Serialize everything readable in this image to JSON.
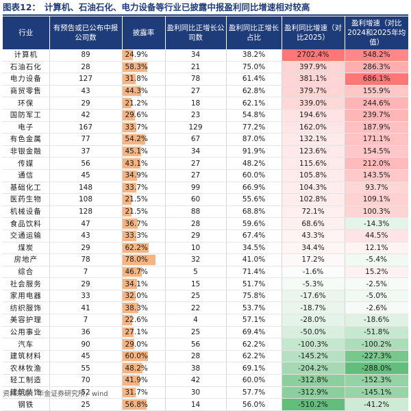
{
  "title": {
    "label": "图表12：",
    "text": "计算机、石油石化、电力设备等行业已披露中报盈利同比增速相对较高"
  },
  "table": {
    "headers": [
      "行业",
      "有预告或已公布中报公司数",
      "披露率",
      "盈利同比正增长公司数",
      "盈利同比正增长占比",
      "盈利同比增速（对比2025）",
      "盈利增速（对比2024和2025年均值）"
    ],
    "rows": [
      {
        "industry": "计算机",
        "count": "89",
        "disclosure": "24.9%",
        "disclosure_value": 24.9,
        "positive": "34",
        "positive_ratio": "38.2%",
        "growth": "2702.4%",
        "growth_value": 2702.4,
        "growth_avg": "548.2%",
        "growth_avg_value": 548.2
      },
      {
        "industry": "石油石化",
        "count": "28",
        "disclosure": "58.3%",
        "disclosure_value": 58.3,
        "positive": "21",
        "positive_ratio": "75.0%",
        "growth": "397.9%",
        "growth_value": 397.9,
        "growth_avg": "286.3%",
        "growth_avg_value": 286.3
      },
      {
        "industry": "电力设备",
        "count": "127",
        "disclosure": "31.8%",
        "disclosure_value": 31.8,
        "positive": "78",
        "positive_ratio": "61.4%",
        "growth": "381.1%",
        "growth_value": 381.1,
        "growth_avg": "686.1%",
        "growth_avg_value": 686.1
      },
      {
        "industry": "商贸零售",
        "count": "43",
        "disclosure": "44.3%",
        "disclosure_value": 44.3,
        "positive": "27",
        "positive_ratio": "62.8%",
        "growth": "379.7%",
        "growth_value": 379.7,
        "growth_avg": "155.9%",
        "growth_avg_value": 155.9
      },
      {
        "industry": "环保",
        "count": "29",
        "disclosure": "21.2%",
        "disclosure_value": 21.2,
        "positive": "18",
        "positive_ratio": "62.1%",
        "growth": "339.0%",
        "growth_value": 339.0,
        "growth_avg": "244.6%",
        "growth_avg_value": 244.6
      },
      {
        "industry": "国防军工",
        "count": "42",
        "disclosure": "29.6%",
        "disclosure_value": 29.6,
        "positive": "23",
        "positive_ratio": "54.8%",
        "growth": "194.6%",
        "growth_value": 194.6,
        "growth_avg": "239.7%",
        "growth_avg_value": 239.7
      },
      {
        "industry": "电子",
        "count": "167",
        "disclosure": "33.7%",
        "disclosure_value": 33.7,
        "positive": "129",
        "positive_ratio": "77.2%",
        "growth": "162.0%",
        "growth_value": 162.0,
        "growth_avg": "187.9%",
        "growth_avg_value": 187.9
      },
      {
        "industry": "有色金属",
        "count": "77",
        "disclosure": "54.2%",
        "disclosure_value": 54.2,
        "positive": "67",
        "positive_ratio": "87.0%",
        "growth": "132.1%",
        "growth_value": 132.1,
        "growth_avg": "171.1%",
        "growth_avg_value": 171.1
      },
      {
        "industry": "非银金融",
        "count": "37",
        "disclosure": "45.1%",
        "disclosure_value": 45.1,
        "positive": "34",
        "positive_ratio": "91.9%",
        "growth": "123.6%",
        "growth_value": 123.6,
        "growth_avg": "154.5%",
        "growth_avg_value": 154.5
      },
      {
        "industry": "传媒",
        "count": "56",
        "disclosure": "43.1%",
        "disclosure_value": 43.1,
        "positive": "27",
        "positive_ratio": "48.2%",
        "growth": "115.6%",
        "growth_value": 115.6,
        "growth_avg": "212.0%",
        "growth_avg_value": 212.0
      },
      {
        "industry": "通信",
        "count": "45",
        "disclosure": "34.9%",
        "disclosure_value": 34.9,
        "positive": "27",
        "positive_ratio": "60.0%",
        "growth": "105.8%",
        "growth_value": 105.8,
        "growth_avg": "143.5%",
        "growth_avg_value": 143.5
      },
      {
        "industry": "基础化工",
        "count": "148",
        "disclosure": "33.7%",
        "disclosure_value": 33.7,
        "positive": "99",
        "positive_ratio": "66.9%",
        "growth": "104.3%",
        "growth_value": 104.3,
        "growth_avg": "93.7%",
        "growth_avg_value": 93.7
      },
      {
        "industry": "医药生物",
        "count": "108",
        "disclosure": "21.5%",
        "disclosure_value": 21.5,
        "positive": "60",
        "positive_ratio": "55.6%",
        "growth": "102.8%",
        "growth_value": 102.8,
        "growth_avg": "109.1%",
        "growth_avg_value": 109.1
      },
      {
        "industry": "机械设备",
        "count": "128",
        "disclosure": "21.5%",
        "disclosure_value": 21.5,
        "positive": "88",
        "positive_ratio": "68.8%",
        "growth": "72.1%",
        "growth_value": 72.1,
        "growth_avg": "100.3%",
        "growth_avg_value": 100.3
      },
      {
        "industry": "食品饮料",
        "count": "47",
        "disclosure": "36.7%",
        "disclosure_value": 36.7,
        "positive": "28",
        "positive_ratio": "59.6%",
        "growth": "68.6%",
        "growth_value": 68.6,
        "growth_avg": "-14.3%",
        "growth_avg_value": -14.3
      },
      {
        "industry": "交通运输",
        "count": "43",
        "disclosure": "33.3%",
        "disclosure_value": 33.3,
        "positive": "29",
        "positive_ratio": "67.4%",
        "growth": "43.3%",
        "growth_value": 43.3,
        "growth_avg": "44.5%",
        "growth_avg_value": 44.5
      },
      {
        "industry": "煤炭",
        "count": "29",
        "disclosure": "62.2%",
        "disclosure_value": 62.2,
        "positive": "10",
        "positive_ratio": "34.5%",
        "growth": "34.4%",
        "growth_value": 34.4,
        "growth_avg": "12.1%",
        "growth_avg_value": 12.1
      },
      {
        "industry": "房地产",
        "count": "78",
        "disclosure": "78.0%",
        "disclosure_value": 78.0,
        "positive": "32",
        "positive_ratio": "41.0%",
        "growth": "17.2%",
        "growth_value": 17.2,
        "growth_avg": "-5.4%",
        "growth_avg_value": -5.4
      },
      {
        "industry": "综合",
        "count": "7",
        "disclosure": "46.7%",
        "disclosure_value": 46.7,
        "positive": "5",
        "positive_ratio": "71.4%",
        "growth": "-1.6%",
        "growth_value": -1.6,
        "growth_avg": "15.2%",
        "growth_avg_value": 15.2
      },
      {
        "industry": "社会服务",
        "count": "29",
        "disclosure": "34.1%",
        "disclosure_value": 34.1,
        "positive": "15",
        "positive_ratio": "51.7%",
        "growth": "-5.3%",
        "growth_value": -5.3,
        "growth_avg": "-2.5%",
        "growth_avg_value": -2.5
      },
      {
        "industry": "家用电器",
        "count": "33",
        "disclosure": "32.0%",
        "disclosure_value": 32.0,
        "positive": "25",
        "positive_ratio": "75.8%",
        "growth": "-17.6%",
        "growth_value": -17.6,
        "growth_avg": "-5.0%",
        "growth_avg_value": -5.0
      },
      {
        "industry": "纺织服饰",
        "count": "41",
        "disclosure": "38.3%",
        "disclosure_value": 38.3,
        "positive": "22",
        "positive_ratio": "53.7%",
        "growth": "-18.7%",
        "growth_value": -18.7,
        "growth_avg": "-2.6%",
        "growth_avg_value": -2.6
      },
      {
        "industry": "美容护理",
        "count": "7",
        "disclosure": "22.6%",
        "disclosure_value": 22.6,
        "positive": "4",
        "positive_ratio": "57.1%",
        "growth": "-28.0%",
        "growth_value": -28.0,
        "growth_avg": "-18.6%",
        "growth_avg_value": -18.6
      },
      {
        "industry": "公用事业",
        "count": "36",
        "disclosure": "27.1%",
        "disclosure_value": 27.1,
        "positive": "25",
        "positive_ratio": "69.4%",
        "growth": "-50.0%",
        "growth_value": -50.0,
        "growth_avg": "-51.8%",
        "growth_avg_value": -51.8
      },
      {
        "industry": "汽车",
        "count": "90",
        "disclosure": "29.0%",
        "disclosure_value": 29.0,
        "positive": "56",
        "positive_ratio": "62.2%",
        "growth": "-100.3%",
        "growth_value": -100.3,
        "growth_avg": "-100.2%",
        "growth_avg_value": -100.2
      },
      {
        "industry": "建筑材料",
        "count": "45",
        "disclosure": "60.0%",
        "disclosure_value": 60.0,
        "positive": "28",
        "positive_ratio": "62.2%",
        "growth": "-145.2%",
        "growth_value": -145.2,
        "growth_avg": "-227.3%",
        "growth_avg_value": -227.3
      },
      {
        "industry": "农林牧渔",
        "count": "55",
        "disclosure": "48.2%",
        "disclosure_value": 48.2,
        "positive": "38",
        "positive_ratio": "69.1%",
        "growth": "-204.2%",
        "growth_value": -204.2,
        "growth_avg": "-288.0%",
        "growth_avg_value": -288.0
      },
      {
        "industry": "轻工制造",
        "count": "70",
        "disclosure": "41.9%",
        "disclosure_value": 41.9,
        "positive": "42",
        "positive_ratio": "60.0%",
        "growth": "-312.8%",
        "growth_value": -312.8,
        "growth_avg": "-152.3%",
        "growth_avg_value": -152.3
      },
      {
        "industry": "建筑装饰",
        "count": "52",
        "disclosure": "31.7%",
        "disclosure_value": 31.7,
        "positive": "30",
        "positive_ratio": "57.7%",
        "growth": "-312.9%",
        "growth_value": -312.9,
        "growth_avg": "-145.1%",
        "growth_avg_value": -145.1
      },
      {
        "industry": "钢铁",
        "count": "25",
        "disclosure": "56.8%",
        "disclosure_value": 56.8,
        "positive": "14",
        "positive_ratio": "56.0%",
        "growth": "-510.2%",
        "growth_value": -510.2,
        "growth_avg": "-41.2%",
        "growth_avg_value": -41.2
      }
    ]
  },
  "source": "资料来源：华金证券研究所，wind",
  "colors": {
    "header_bg": "#1f3c7a",
    "bar": "#f5b481",
    "positive_max": "#f08080",
    "negative_max": "#63be7b",
    "neutral": "#ffffff"
  }
}
